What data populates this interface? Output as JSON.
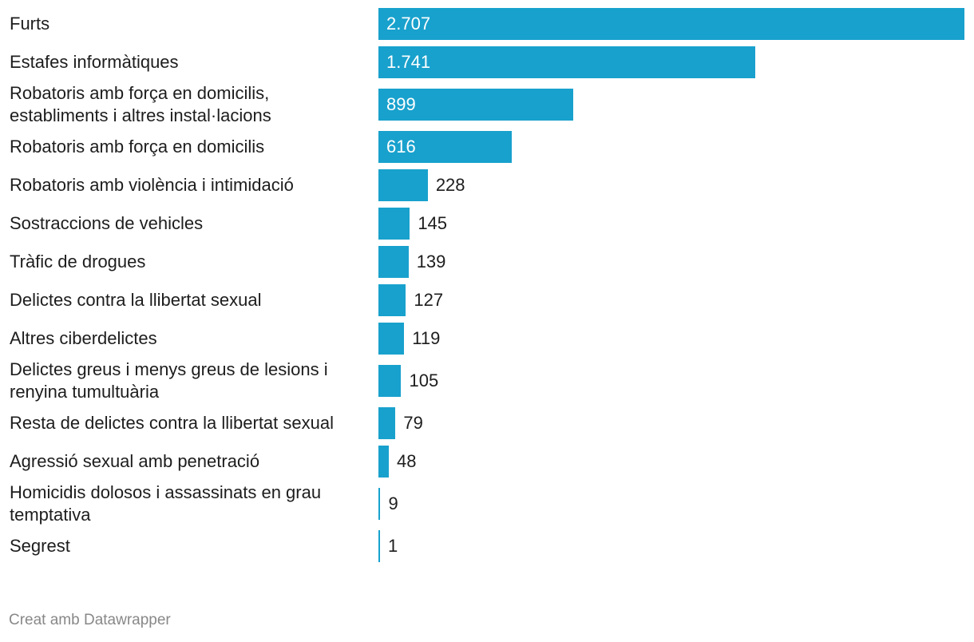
{
  "chart_data": {
    "type": "bar",
    "orientation": "horizontal",
    "categories": [
      "Furts",
      "Estafes informàtiques",
      "Robatoris amb força en domicilis, establiments i altres instal·lacions",
      "Robatoris amb força en domicilis",
      "Robatoris amb violència i intimidació",
      "Sostraccions de vehicles",
      "Tràfic de drogues",
      "Delictes contra la llibertat sexual",
      "Altres ciberdelictes",
      "Delictes greus i menys greus de lesions i renyina tumultuària",
      "Resta de delictes contra la llibertat sexual",
      "Agressió sexual amb penetració",
      "Homicidis dolosos i assassinats en grau temptativa",
      "Segrest"
    ],
    "values": [
      2707,
      1741,
      899,
      616,
      228,
      145,
      139,
      127,
      119,
      105,
      79,
      48,
      9,
      1
    ],
    "value_labels": [
      "2.707",
      "1.741",
      "899",
      "616",
      "228",
      "145",
      "139",
      "127",
      "119",
      "105",
      "79",
      "48",
      "9",
      "1"
    ],
    "xlim": [
      0,
      2707
    ],
    "bar_color": "#18a1cd",
    "title": "",
    "xlabel": "",
    "ylabel": ""
  },
  "footer": {
    "credit": "Creat amb Datawrapper"
  }
}
